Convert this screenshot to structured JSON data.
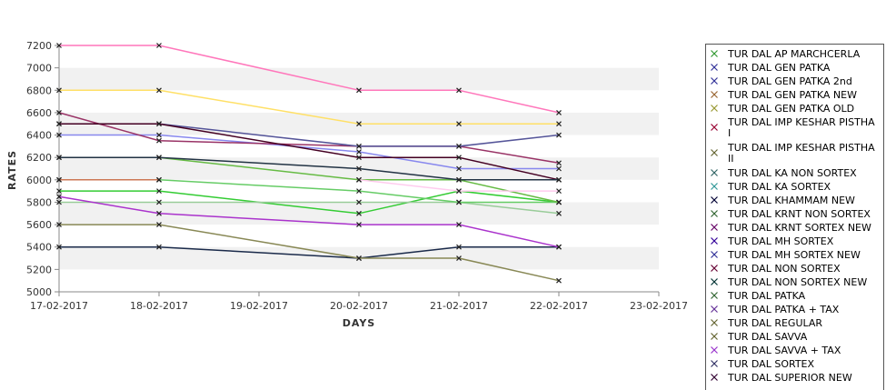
{
  "chart_data": {
    "type": "line",
    "xlabel": "DAYS",
    "ylabel": "RATES",
    "ylim": [
      5000,
      7200
    ],
    "yticks": [
      5000,
      5200,
      5400,
      5600,
      5800,
      6000,
      6200,
      6400,
      6600,
      6800,
      7000,
      7200
    ],
    "xticks": [
      "17-02-2017",
      "18-02-2017",
      "19-02-2017",
      "20-02-2017",
      "21-02-2017",
      "22-02-2017",
      "23-02-2017"
    ],
    "grid": "alternating horizontal bands",
    "legend_position": "right",
    "series": [
      {
        "name": "TUR DAL AP MARCHCERLA",
        "color": "#33cc33",
        "marker_color": "#339933",
        "points": [
          [
            "17-02-2017",
            5900
          ],
          [
            "18-02-2017",
            5900
          ],
          [
            "20-02-2017",
            5700
          ],
          [
            "21-02-2017",
            5900
          ],
          [
            "22-02-2017",
            5800
          ]
        ]
      },
      {
        "name": "TUR DAL GEN PATKA",
        "color": "#8888ee",
        "marker_color": "#333399",
        "points": [
          [
            "17-02-2017",
            6400
          ],
          [
            "18-02-2017",
            6400
          ],
          [
            "20-02-2017",
            6250
          ],
          [
            "21-02-2017",
            6100
          ],
          [
            "22-02-2017",
            6100
          ]
        ]
      },
      {
        "name": "TUR DAL GEN PATKA 2nd",
        "color": "#ff77bb",
        "marker_color": "#333399",
        "points": [
          [
            "17-02-2017",
            7200
          ],
          [
            "18-02-2017",
            7200
          ],
          [
            "20-02-2017",
            6800
          ],
          [
            "21-02-2017",
            6800
          ],
          [
            "22-02-2017",
            6600
          ]
        ]
      },
      {
        "name": "TUR DAL GEN PATKA NEW",
        "color": "#ffe066",
        "marker_color": "#996633",
        "points": [
          [
            "17-02-2017",
            6800
          ],
          [
            "18-02-2017",
            6800
          ],
          [
            "20-02-2017",
            6500
          ],
          [
            "21-02-2017",
            6500
          ],
          [
            "22-02-2017",
            6500
          ]
        ]
      },
      {
        "name": "TUR DAL GEN PATKA OLD",
        "color": "#666666",
        "marker_color": "#999933",
        "points": []
      },
      {
        "name": "TUR DAL IMP KESHAR PISTHA I",
        "color": "#993366",
        "marker_color": "#990033",
        "points": [
          [
            "17-02-2017",
            6600
          ],
          [
            "18-02-2017",
            6350
          ],
          [
            "20-02-2017",
            6300
          ],
          [
            "21-02-2017",
            6300
          ],
          [
            "22-02-2017",
            6150
          ]
        ]
      },
      {
        "name": "TUR DAL IMP KESHAR PISTHA II",
        "color": "#99cc99",
        "marker_color": "#666633",
        "points": [
          [
            "17-02-2017",
            5800
          ],
          [
            "18-02-2017",
            5800
          ],
          [
            "20-02-2017",
            5800
          ],
          [
            "21-02-2017",
            5800
          ],
          [
            "22-02-2017",
            5700
          ]
        ]
      },
      {
        "name": "TUR DAL KA NON SORTEX",
        "color": "#66cc66",
        "marker_color": "#336666",
        "points": [
          [
            "17-02-2017",
            6000
          ],
          [
            "18-02-2017",
            6000
          ],
          [
            "20-02-2017",
            5900
          ],
          [
            "21-02-2017",
            5800
          ],
          [
            "22-02-2017",
            5800
          ]
        ]
      },
      {
        "name": "TUR DAL KA SORTEX",
        "color": "#66bb44",
        "marker_color": "#339999",
        "points": [
          [
            "17-02-2017",
            6200
          ],
          [
            "18-02-2017",
            6200
          ],
          [
            "20-02-2017",
            6000
          ],
          [
            "21-02-2017",
            6000
          ],
          [
            "22-02-2017",
            5800
          ]
        ]
      },
      {
        "name": "TUR DAL KHAMMAM NEW",
        "color": "#1a2a4a",
        "marker_color": "#000033",
        "points": [
          [
            "17-02-2017",
            5400
          ],
          [
            "18-02-2017",
            5400
          ],
          [
            "20-02-2017",
            5300
          ],
          [
            "21-02-2017",
            5400
          ],
          [
            "22-02-2017",
            5400
          ]
        ]
      },
      {
        "name": "TUR DAL KRNT NON SORTEX",
        "color": "#888855",
        "marker_color": "#336633",
        "points": [
          [
            "17-02-2017",
            5600
          ],
          [
            "18-02-2017",
            5600
          ],
          [
            "20-02-2017",
            5300
          ],
          [
            "21-02-2017",
            5300
          ],
          [
            "22-02-2017",
            5100
          ]
        ]
      },
      {
        "name": "TUR DAL KRNT SORTEX NEW",
        "color": "#ffccee",
        "marker_color": "#660066",
        "points": [
          [
            "20-02-2017",
            6000
          ],
          [
            "21-02-2017",
            5900
          ],
          [
            "22-02-2017",
            5900
          ]
        ]
      },
      {
        "name": "TUR DAL MH SORTEX",
        "color": "#cc7755",
        "marker_color": "#330099",
        "points": [
          [
            "17-02-2017",
            6000
          ],
          [
            "18-02-2017",
            6000
          ]
        ]
      },
      {
        "name": "TUR DAL MH SORTEX NEW",
        "color": "#555599",
        "marker_color": "#333399",
        "points": [
          [
            "17-02-2017",
            6500
          ],
          [
            "18-02-2017",
            6500
          ],
          [
            "20-02-2017",
            6300
          ],
          [
            "21-02-2017",
            6300
          ],
          [
            "22-02-2017",
            6400
          ]
        ]
      },
      {
        "name": "TUR DAL NON SORTEX",
        "color": "#440022",
        "marker_color": "#660033",
        "points": [
          [
            "17-02-2017",
            6500
          ],
          [
            "18-02-2017",
            6500
          ],
          [
            "20-02-2017",
            6200
          ],
          [
            "21-02-2017",
            6200
          ],
          [
            "22-02-2017",
            6000
          ]
        ]
      },
      {
        "name": "TUR DAL NON SORTEX NEW",
        "color": "#223344",
        "marker_color": "#003333",
        "points": [
          [
            "17-02-2017",
            6200
          ],
          [
            "18-02-2017",
            6200
          ],
          [
            "20-02-2017",
            6100
          ],
          [
            "21-02-2017",
            6000
          ],
          [
            "22-02-2017",
            6000
          ]
        ]
      },
      {
        "name": "TUR DAL PATKA",
        "color": "#668866",
        "marker_color": "#336633",
        "points": []
      },
      {
        "name": "TUR DAL PATKA + TAX",
        "color": "#aa33cc",
        "marker_color": "#663399",
        "points": [
          [
            "17-02-2017",
            5850
          ],
          [
            "18-02-2017",
            5700
          ],
          [
            "20-02-2017",
            5600
          ],
          [
            "21-02-2017",
            5600
          ],
          [
            "22-02-2017",
            5400
          ]
        ]
      },
      {
        "name": "TUR DAL REGULAR",
        "color": "#999944",
        "marker_color": "#666633",
        "points": []
      },
      {
        "name": "TUR DAL SAVVA",
        "color": "#777744",
        "marker_color": "#666633",
        "points": []
      },
      {
        "name": "TUR DAL SAVVA + TAX",
        "color": "#9933cc",
        "marker_color": "#9933cc",
        "points": []
      },
      {
        "name": "TUR DAL SORTEX",
        "color": "#333366",
        "marker_color": "#333366",
        "points": []
      },
      {
        "name": "TUR DAL SUPERIOR NEW",
        "color": "#330033",
        "marker_color": "#330033",
        "points": []
      }
    ]
  }
}
